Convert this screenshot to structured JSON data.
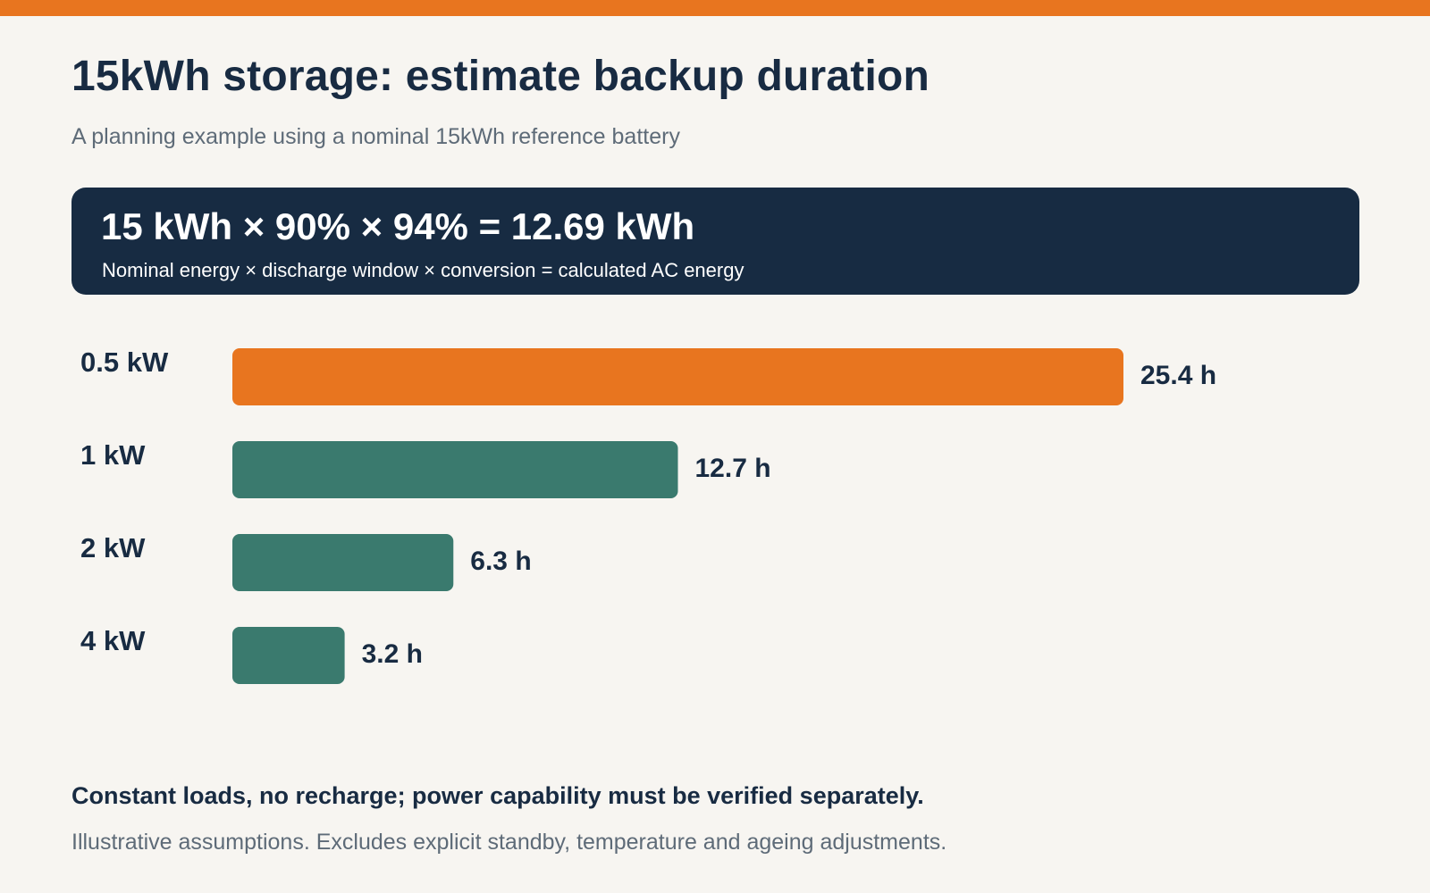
{
  "header": {
    "title": "15kWh storage: estimate backup duration",
    "subtitle": "A planning example using a nominal 15kWh reference battery"
  },
  "formula": {
    "main": "15 kWh × 90% × 94% = 12.69 kWh",
    "caption": "Nominal energy × discharge window × conversion = calculated AC energy"
  },
  "colors": {
    "accent": "#E8751F",
    "primary_bar": "#3A7A6E",
    "navy": "#172B42",
    "background": "#F7F5F1"
  },
  "chart_data": {
    "type": "bar",
    "orientation": "horizontal",
    "categories": [
      "0.5 kW",
      "1 kW",
      "2 kW",
      "4 kW"
    ],
    "values": [
      25.4,
      12.7,
      6.3,
      3.2
    ],
    "value_labels": [
      "25.4 h",
      "12.7 h",
      "6.3 h",
      "3.2 h"
    ],
    "highlight_index": 0,
    "xlim": [
      0,
      25.4
    ],
    "grid": false
  },
  "footer": {
    "note": "Constant loads, no recharge; power capability must be verified separately.",
    "source": "Illustrative assumptions. Excludes explicit standby, temperature and ageing adjustments."
  }
}
